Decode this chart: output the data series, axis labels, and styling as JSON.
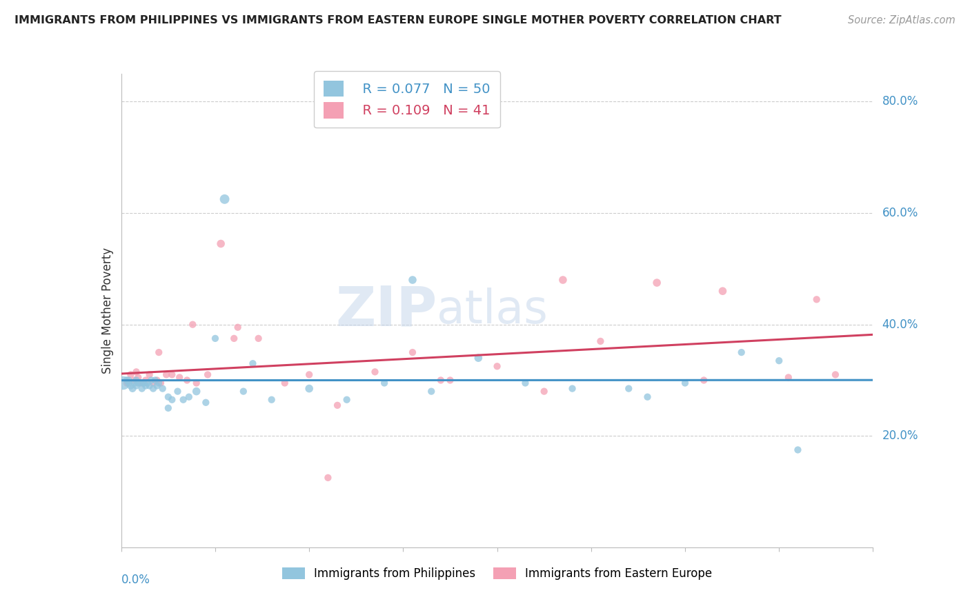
{
  "title": "IMMIGRANTS FROM PHILIPPINES VS IMMIGRANTS FROM EASTERN EUROPE SINGLE MOTHER POVERTY CORRELATION CHART",
  "source": "Source: ZipAtlas.com",
  "ylabel": "Single Mother Poverty",
  "xlim": [
    0.0,
    0.4
  ],
  "ylim": [
    0.0,
    0.85
  ],
  "watermark": "ZIPatlas",
  "legend_r1": "R = 0.077",
  "legend_n1": "N = 50",
  "legend_r2": "R = 0.109",
  "legend_n2": "N = 41",
  "blue_color": "#92c5de",
  "pink_color": "#f4a0b4",
  "line_blue": "#4292c6",
  "line_pink": "#d04060",
  "philippines_x": [
    0.001,
    0.003,
    0.004,
    0.005,
    0.006,
    0.007,
    0.008,
    0.009,
    0.01,
    0.011,
    0.012,
    0.013,
    0.014,
    0.015,
    0.016,
    0.017,
    0.019,
    0.02,
    0.022,
    0.025,
    0.027,
    0.03,
    0.033,
    0.036,
    0.04,
    0.045,
    0.055,
    0.065,
    0.08,
    0.1,
    0.12,
    0.14,
    0.165,
    0.19,
    0.215,
    0.24,
    0.27,
    0.3,
    0.33,
    0.36,
    0.004,
    0.008,
    0.012,
    0.018,
    0.025,
    0.05,
    0.07,
    0.155,
    0.28,
    0.35
  ],
  "philippines_y": [
    0.295,
    0.3,
    0.295,
    0.29,
    0.285,
    0.295,
    0.29,
    0.295,
    0.295,
    0.285,
    0.295,
    0.29,
    0.295,
    0.29,
    0.3,
    0.285,
    0.29,
    0.295,
    0.285,
    0.27,
    0.265,
    0.28,
    0.265,
    0.27,
    0.28,
    0.26,
    0.625,
    0.28,
    0.265,
    0.285,
    0.265,
    0.295,
    0.28,
    0.34,
    0.295,
    0.285,
    0.285,
    0.295,
    0.35,
    0.175,
    0.3,
    0.3,
    0.295,
    0.3,
    0.25,
    0.375,
    0.33,
    0.48,
    0.27,
    0.335
  ],
  "philippines_size": [
    200,
    60,
    60,
    60,
    60,
    55,
    55,
    55,
    55,
    55,
    55,
    55,
    55,
    55,
    55,
    55,
    55,
    55,
    55,
    55,
    55,
    55,
    55,
    55,
    70,
    55,
    100,
    55,
    55,
    70,
    55,
    55,
    55,
    70,
    55,
    55,
    55,
    55,
    55,
    55,
    55,
    55,
    55,
    55,
    55,
    55,
    55,
    70,
    55,
    55
  ],
  "eastern_x": [
    0.003,
    0.005,
    0.007,
    0.009,
    0.011,
    0.013,
    0.015,
    0.017,
    0.019,
    0.021,
    0.024,
    0.027,
    0.031,
    0.035,
    0.04,
    0.046,
    0.053,
    0.062,
    0.073,
    0.087,
    0.1,
    0.115,
    0.135,
    0.155,
    0.175,
    0.2,
    0.225,
    0.255,
    0.285,
    0.32,
    0.355,
    0.38,
    0.008,
    0.02,
    0.038,
    0.06,
    0.11,
    0.17,
    0.235,
    0.31,
    0.37
  ],
  "eastern_y": [
    0.295,
    0.31,
    0.3,
    0.305,
    0.295,
    0.3,
    0.31,
    0.295,
    0.3,
    0.295,
    0.31,
    0.31,
    0.305,
    0.3,
    0.295,
    0.31,
    0.545,
    0.395,
    0.375,
    0.295,
    0.31,
    0.255,
    0.315,
    0.35,
    0.3,
    0.325,
    0.28,
    0.37,
    0.475,
    0.46,
    0.305,
    0.31,
    0.315,
    0.35,
    0.4,
    0.375,
    0.125,
    0.3,
    0.48,
    0.3,
    0.445
  ],
  "eastern_size": [
    60,
    55,
    55,
    55,
    55,
    55,
    55,
    55,
    55,
    55,
    55,
    55,
    55,
    55,
    55,
    55,
    70,
    55,
    55,
    55,
    55,
    55,
    55,
    55,
    55,
    55,
    55,
    55,
    70,
    70,
    55,
    55,
    55,
    55,
    55,
    55,
    55,
    55,
    70,
    55,
    55
  ]
}
